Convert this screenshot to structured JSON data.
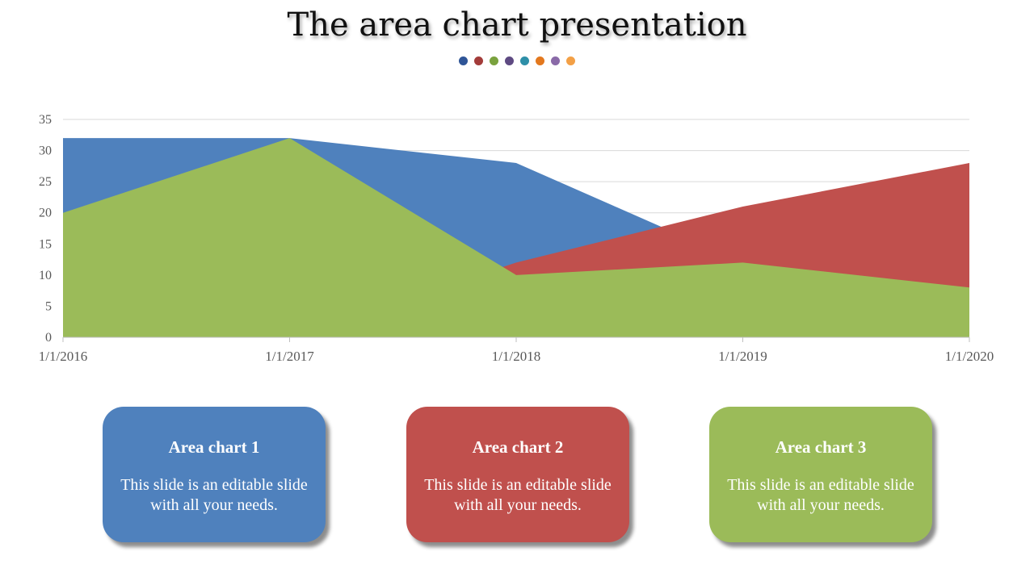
{
  "slide": {
    "title": "The area chart presentation",
    "dot_colors": [
      "#2f5597",
      "#a33c3a",
      "#7aa23e",
      "#5e4a82",
      "#2e8fa8",
      "#e3781e",
      "#8a6aa8",
      "#f3a046"
    ]
  },
  "chart_data": {
    "type": "area",
    "x": [
      "1/1/2016",
      "1/1/2017",
      "1/1/2018",
      "1/1/2019",
      "1/1/2020"
    ],
    "ylim": [
      0,
      35
    ],
    "yticks": [
      0,
      5,
      10,
      15,
      20,
      25,
      30,
      35
    ],
    "grid": true,
    "series": [
      {
        "color": "#4f81bd",
        "values": [
          32,
          32,
          28,
          12,
          28
        ]
      },
      {
        "color": "#c0504d",
        "values": [
          0,
          0,
          12,
          21,
          28
        ]
      },
      {
        "color": "#9bbb59",
        "values": [
          20,
          32,
          10,
          12,
          8
        ]
      }
    ]
  },
  "cards": [
    {
      "title": "Area chart 1",
      "text": "This slide is an editable slide with all your needs.",
      "color": "#4f81bd"
    },
    {
      "title": "Area chart 2",
      "text": "This slide is an editable slide with all your needs.",
      "color": "#c0504d"
    },
    {
      "title": "Area chart 3",
      "text": "This slide is an editable slide with all your needs.",
      "color": "#9bbb59"
    }
  ]
}
